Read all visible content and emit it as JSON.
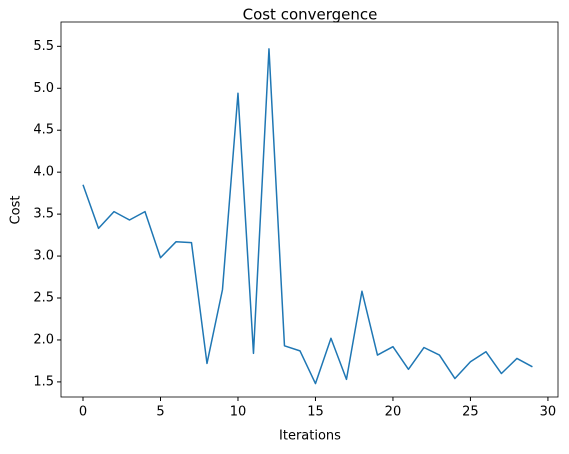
{
  "chart_data": {
    "type": "line",
    "title": "Cost convergence",
    "x_label": "Iterations",
    "y_label": "Cost",
    "x": [
      0,
      1,
      2,
      3,
      4,
      5,
      6,
      7,
      8,
      9,
      10,
      11,
      12,
      13,
      14,
      15,
      16,
      17,
      18,
      19,
      20,
      21,
      22,
      23,
      24,
      25,
      26,
      27,
      28,
      29
    ],
    "series": [
      {
        "name": "Cost",
        "color": "#1f77b4",
        "values": [
          3.85,
          3.33,
          3.53,
          3.43,
          3.53,
          2.98,
          3.17,
          3.16,
          1.72,
          2.6,
          4.94,
          1.84,
          5.47,
          1.93,
          1.87,
          1.48,
          2.02,
          1.53,
          2.58,
          1.82,
          1.92,
          1.65,
          1.91,
          1.82,
          1.54,
          1.74,
          1.86,
          1.6,
          1.78,
          1.68
        ]
      }
    ],
    "xlim": [
      -1.42,
      30.65
    ],
    "ylim": [
      1.32,
      5.79
    ],
    "xticks": [
      0,
      5,
      10,
      15,
      20,
      25,
      30
    ],
    "yticks": [
      {
        "value": 1.5,
        "label": "1.5"
      },
      {
        "value": 2.0,
        "label": "2.0"
      },
      {
        "value": 2.5,
        "label": "2.5"
      },
      {
        "value": 3.0,
        "label": "3.0"
      },
      {
        "value": 3.5,
        "label": "3.5"
      },
      {
        "value": 4.0,
        "label": "4.0"
      },
      {
        "value": 4.5,
        "label": "4.5"
      },
      {
        "value": 5.0,
        "label": "5.0"
      },
      {
        "value": 5.5,
        "label": "5.5"
      }
    ],
    "grid": false
  }
}
